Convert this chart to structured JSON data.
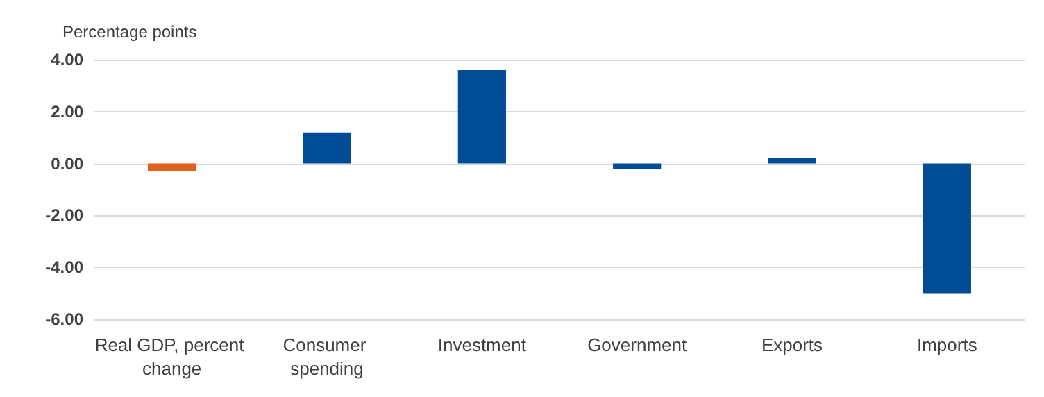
{
  "chart_data": {
    "type": "bar",
    "ylabel": "Percentage points",
    "categories": [
      "Real GDP, percent change",
      "Consumer spending",
      "Investment",
      "Government",
      "Exports",
      "Imports"
    ],
    "values": [
      -0.3,
      1.2,
      3.6,
      -0.2,
      0.2,
      -5.0
    ],
    "colors": [
      "#e0601e",
      "#004c97",
      "#004c97",
      "#004c97",
      "#004c97",
      "#004c97"
    ],
    "ylim": [
      -6,
      4
    ],
    "yticks": [
      {
        "value": -6,
        "label": "-6.00"
      },
      {
        "value": -4,
        "label": "-4.00"
      },
      {
        "value": -2,
        "label": "-2.00"
      },
      {
        "value": 0,
        "label": "0.00"
      },
      {
        "value": 2,
        "label": "2.00"
      },
      {
        "value": 4,
        "label": "4.00"
      }
    ],
    "grid": "y"
  }
}
